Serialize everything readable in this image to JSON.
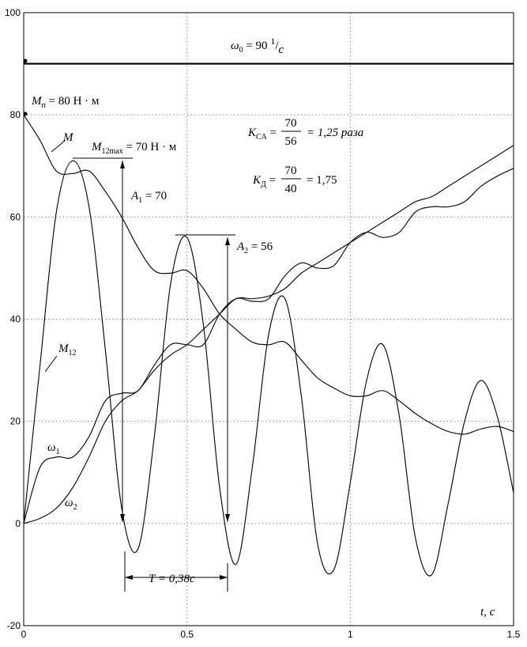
{
  "chart_data": {
    "type": "line",
    "title": "",
    "xlabel": "t, c",
    "ylabel": "",
    "xlim": [
      0,
      1.5
    ],
    "ylim": [
      -20,
      100
    ],
    "grid": true,
    "x_ticks": [
      "0",
      "0.5",
      "1",
      "1.5"
    ],
    "y_ticks": [
      "100",
      "80",
      "60",
      "40",
      "20",
      "0",
      "-20"
    ],
    "series": [
      {
        "name": "ω0",
        "x": [
          0,
          1.5
        ],
        "y": [
          90,
          90
        ]
      },
      {
        "name": "M",
        "x": [
          0,
          0.05,
          0.1,
          0.15,
          0.2,
          0.25,
          0.3,
          0.35,
          0.4,
          0.45,
          0.5,
          0.55,
          0.6,
          0.65,
          0.7,
          0.75,
          0.8,
          0.85,
          0.9,
          0.95,
          1.0,
          1.05,
          1.1,
          1.15,
          1.2,
          1.25,
          1.3,
          1.35,
          1.4,
          1.45,
          1.5
        ],
        "y": [
          80,
          75,
          69,
          68.5,
          69,
          65,
          60,
          54,
          49.5,
          49,
          49.5,
          46,
          41,
          38,
          35.5,
          35,
          35.5,
          32,
          28.5,
          26.5,
          25,
          25,
          26,
          24,
          21.5,
          19.5,
          18,
          17.5,
          18.5,
          19,
          18
        ]
      },
      {
        "name": "M12",
        "x": [
          0,
          0.05,
          0.1,
          0.15,
          0.2,
          0.25,
          0.3,
          0.35,
          0.4,
          0.45,
          0.5,
          0.55,
          0.6,
          0.65,
          0.7,
          0.75,
          0.8,
          0.85,
          0.9,
          0.95,
          1.0,
          1.05,
          1.1,
          1.15,
          1.2,
          1.25,
          1.3,
          1.35,
          1.4,
          1.45,
          1.5
        ],
        "y": [
          0,
          31,
          61,
          71,
          62,
          34,
          3,
          -5,
          17,
          47,
          56,
          39,
          7,
          -8,
          11,
          37,
          44,
          25,
          -4,
          -9,
          8,
          28,
          35,
          21,
          -3,
          -10,
          4,
          20,
          28,
          21,
          6
        ]
      },
      {
        "name": "ω1",
        "x": [
          0,
          0.05,
          0.1,
          0.15,
          0.2,
          0.25,
          0.3,
          0.35,
          0.4,
          0.45,
          0.5,
          0.55,
          0.6,
          0.65,
          0.7,
          0.75,
          0.8,
          0.85,
          0.9,
          0.95,
          1.0,
          1.05,
          1.1,
          1.15,
          1.2,
          1.25,
          1.3,
          1.35,
          1.4,
          1.45,
          1.5
        ],
        "y": [
          0,
          11,
          13,
          13,
          17,
          24,
          25.5,
          26,
          31,
          35,
          35,
          35,
          41,
          44,
          43.5,
          44,
          48.5,
          51,
          50,
          50.5,
          55,
          57,
          56,
          57,
          61,
          62,
          62,
          63,
          66,
          68,
          69.5
        ]
      },
      {
        "name": "ω2",
        "x": [
          0,
          0.05,
          0.1,
          0.15,
          0.2,
          0.25,
          0.3,
          0.35,
          0.4,
          0.45,
          0.5,
          0.55,
          0.6,
          0.65,
          0.7,
          0.75,
          0.8,
          0.85,
          0.9,
          0.95,
          1.0,
          1.05,
          1.1,
          1.15,
          1.2,
          1.25,
          1.3,
          1.35,
          1.4,
          1.45,
          1.5
        ],
        "y": [
          0,
          1,
          3,
          7,
          13,
          20,
          24,
          26,
          30,
          33,
          35,
          38,
          41,
          44,
          44,
          44.5,
          46,
          49,
          51,
          53,
          55,
          57,
          59,
          61,
          63,
          64,
          66,
          68,
          70,
          72,
          74
        ]
      }
    ]
  },
  "annotations": {
    "omega0_label": "ω",
    "omega0_sub": "0",
    "omega0_value": " = 90 ",
    "omega0_num": "1",
    "omega0_den": "c",
    "mp_label": "M",
    "mp_sub": "п",
    "mp_value": " = 80 Н · м",
    "m_label": "M",
    "m12max_label": "M",
    "m12max_sub": "12max",
    "m12max_value": " = 70 Н · м",
    "a1_label": "A",
    "a1_sub": "1",
    "a1_value": " = 70",
    "a2_label": "A",
    "a2_sub": "2",
    "a2_value": " = 56",
    "ksa_label": "K",
    "ksa_sub": "CA",
    "ksa_num": "70",
    "ksa_den": "56",
    "ksa_value": "= 1,25 раза",
    "kd_label": "K",
    "kd_sub": "Д",
    "kd_num": "70",
    "kd_den": "40",
    "kd_value": "= 1,75",
    "m12_label": "M",
    "m12_sub": "12",
    "w1_label": "ω",
    "w1_sub": "1",
    "w2_label": "ω",
    "w2_sub": "2",
    "period_label": "T = 0,38c",
    "xaxis_label": "t, c"
  }
}
